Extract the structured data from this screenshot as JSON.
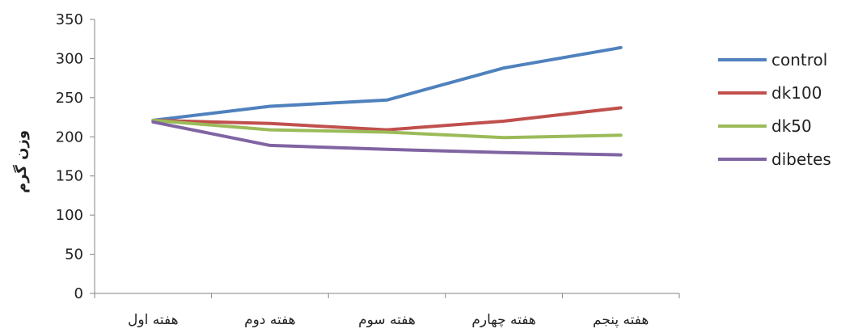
{
  "chart_data": {
    "type": "line",
    "categories": [
      "هفته اول",
      "هفته دوم",
      "هفته سوم",
      "هفته چهارم",
      "هفته پنجم"
    ],
    "series": [
      {
        "name": "control",
        "values": [
          221,
          239,
          247,
          288,
          314
        ],
        "color": "#4f81bd"
      },
      {
        "name": "dk100",
        "values": [
          221,
          217,
          209,
          220,
          237
        ],
        "color": "#c0504d"
      },
      {
        "name": "dk50",
        "values": [
          221,
          209,
          206,
          199,
          202
        ],
        "color": "#9bbb59"
      },
      {
        "name": "dibetes",
        "values": [
          219,
          189,
          184,
          180,
          177
        ],
        "color": "#8064a2"
      }
    ],
    "ylabel": "وزن گرم",
    "xlabel": "",
    "ylim": [
      0,
      350
    ],
    "yticks": [
      0,
      50,
      100,
      150,
      200,
      250,
      300,
      350
    ],
    "grid": false,
    "legend": "right"
  }
}
